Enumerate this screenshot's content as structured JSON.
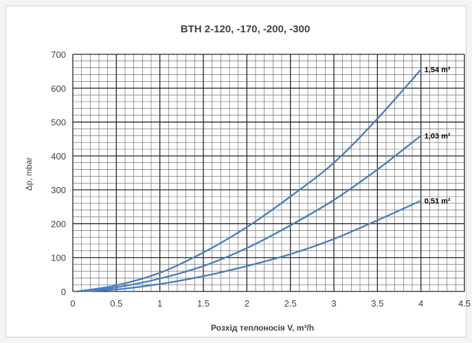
{
  "chart_data": {
    "type": "line",
    "title": "BTH 2-120, -170, -200, -300",
    "xlabel": "Розхід теплоносія V, m³/h",
    "ylabel": "Δp, mbar",
    "xlim": [
      0,
      4.5
    ],
    "ylim": [
      0,
      700
    ],
    "x_ticks": [
      "0",
      "0.5",
      "1",
      "1.5",
      "2",
      "2.5",
      "3",
      "3.5",
      "4",
      "4.5"
    ],
    "y_ticks": [
      "0",
      "100",
      "200",
      "300",
      "400",
      "500",
      "600",
      "700"
    ],
    "grid": true,
    "legend": "inline labels at line ends",
    "line_color": "#4a7ebb",
    "series": [
      {
        "name": "1,54 m²",
        "x": [
          0.05,
          0.5,
          1.0,
          1.5,
          2.0,
          2.5,
          3.0,
          3.5,
          4.0
        ],
        "y": [
          0,
          18,
          55,
          115,
          190,
          280,
          380,
          510,
          655
        ]
      },
      {
        "name": "1,03 m²",
        "x": [
          0.05,
          0.5,
          1.0,
          1.5,
          2.0,
          2.5,
          3.0,
          3.5,
          4.0
        ],
        "y": [
          0,
          12,
          38,
          75,
          128,
          195,
          270,
          360,
          460
        ]
      },
      {
        "name": "0,51 m²",
        "x": [
          0.05,
          0.5,
          1.0,
          1.5,
          2.0,
          2.5,
          3.0,
          3.5,
          4.0
        ],
        "y": [
          0,
          6,
          22,
          45,
          75,
          110,
          155,
          210,
          268
        ]
      }
    ]
  }
}
